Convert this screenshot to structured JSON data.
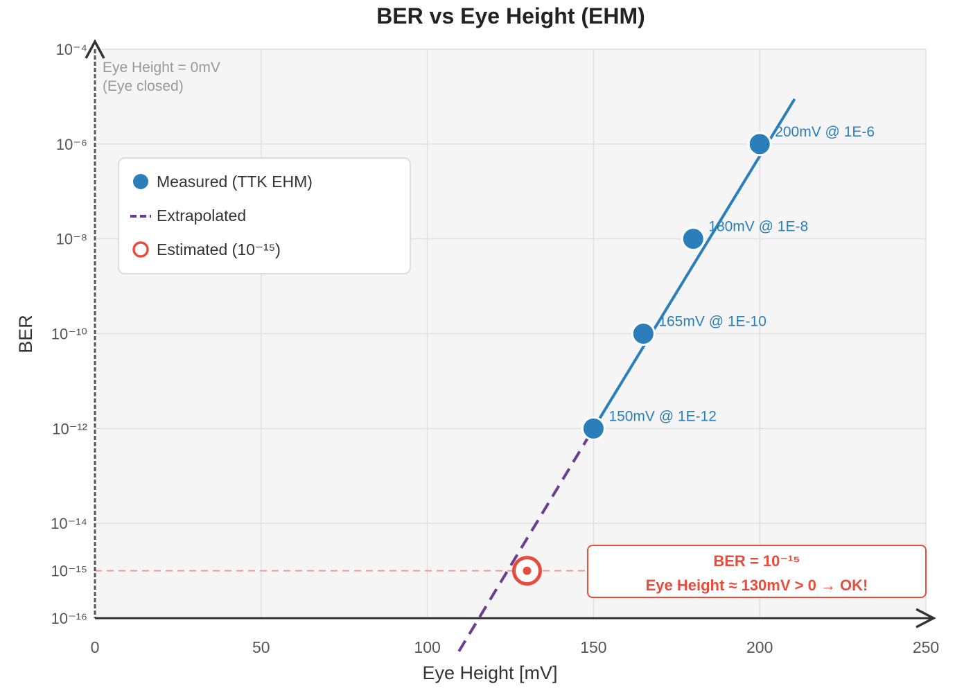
{
  "chart_data": {
    "type": "line",
    "title": "BER vs Eye Height (EHM)",
    "xlabel": "Eye Height [mV]",
    "ylabel": "BER",
    "xlim": [
      0,
      250
    ],
    "ylim_log10": [
      -16,
      -4
    ],
    "yscale": "log",
    "grid": true,
    "x_ticks": [
      0,
      50,
      100,
      150,
      200,
      250
    ],
    "x_tick_labels": [
      "0",
      "50",
      "100",
      "150",
      "200",
      "250"
    ],
    "y_ticks_log10": [
      -4,
      -6,
      -8,
      -10,
      -12,
      -14,
      -15,
      -16
    ],
    "y_tick_labels": [
      "10⁻⁴",
      "10⁻⁶",
      "10⁻⁸",
      "10⁻¹⁰",
      "10⁻¹²",
      "10⁻¹⁴",
      "10⁻¹⁵",
      "10⁻¹⁶"
    ],
    "series": [
      {
        "name": "Measured (TTK EHM)",
        "type": "scatter",
        "color": "#2a7fba",
        "points": [
          {
            "x": 150,
            "log10_ber": -12,
            "label": "150mV @ 1E-12"
          },
          {
            "x": 165,
            "log10_ber": -10,
            "label": "165mV @ 1E-10"
          },
          {
            "x": 180,
            "log10_ber": -8,
            "label": "180mV @ 1E-8"
          },
          {
            "x": 200,
            "log10_ber": -6,
            "label": "200mV @ 1E-6"
          }
        ]
      },
      {
        "name": "Fit",
        "type": "line",
        "color": "#2a7fba",
        "points": [
          {
            "x": 150,
            "log10_ber": -12
          },
          {
            "x": 210.5,
            "log10_ber": -5.05
          }
        ]
      },
      {
        "name": "Extrapolated",
        "type": "line",
        "style": "dashed",
        "color": "#6a3d8f",
        "points": [
          {
            "x": 109.5,
            "log10_ber": -16.7
          },
          {
            "x": 150,
            "log10_ber": -12
          }
        ]
      },
      {
        "name": "Estimated (10⁻¹⁵)",
        "type": "marker",
        "color": "#e74c3c",
        "points": [
          {
            "x": 130,
            "log10_ber": -15
          }
        ]
      }
    ],
    "reference_line": {
      "log10_ber": -15,
      "color": "#e74c3c"
    },
    "zero_line_annotation": [
      "Eye Height = 0mV",
      "(Eye closed)"
    ],
    "callout": {
      "line1": "BER = 10⁻¹⁵",
      "line2": "Eye Height ≈ 130mV > 0 → OK!"
    },
    "legend": {
      "placement": "top-left",
      "entries": [
        "Measured (TTK EHM)",
        "Extrapolated",
        "Estimated (10⁻¹⁵)"
      ]
    }
  }
}
